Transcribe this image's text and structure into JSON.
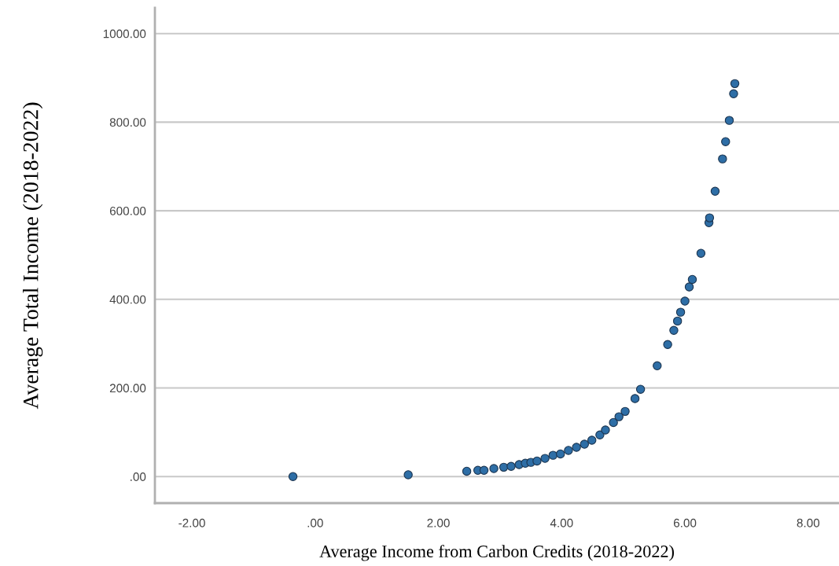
{
  "chart_data": {
    "type": "scatter",
    "xlabel": "Average Income from Carbon Credits (2018-2022)",
    "ylabel": "Average Total Income (2018-2022)",
    "x": [
      -0.36,
      1.51,
      2.46,
      2.64,
      2.74,
      2.9,
      3.06,
      3.18,
      3.31,
      3.41,
      3.5,
      3.6,
      3.73,
      3.86,
      3.98,
      4.11,
      4.24,
      4.37,
      4.49,
      4.62,
      4.71,
      4.84,
      4.93,
      5.03,
      5.19,
      5.28,
      5.55,
      5.72,
      5.82,
      5.88,
      5.93,
      6.0,
      6.07,
      6.12,
      6.26,
      6.39,
      6.4,
      6.49,
      6.61,
      6.66,
      6.72,
      6.79,
      6.81
    ],
    "series": [
      {
        "color": "#2e6ea6",
        "values": [
          0,
          4,
          12,
          14,
          14,
          18,
          21,
          23,
          27,
          30,
          32,
          35,
          41,
          48,
          51,
          59,
          66,
          73,
          82,
          94,
          105,
          122,
          135,
          147,
          176,
          197,
          250,
          298,
          330,
          351,
          371,
          396,
          428,
          445,
          504,
          573,
          584,
          644,
          717,
          756,
          804,
          864,
          887
        ]
      }
    ],
    "xlim": [
      -2.6,
      8.5
    ],
    "ylim": [
      -60,
      1058
    ],
    "xticks": [
      {
        "value": -2,
        "label": "-2.00"
      },
      {
        "value": 0,
        "label": ".00"
      },
      {
        "value": 2,
        "label": "2.00"
      },
      {
        "value": 4,
        "label": "4.00"
      },
      {
        "value": 6,
        "label": "6.00"
      },
      {
        "value": 8,
        "label": "8.00"
      }
    ],
    "yticks": [
      {
        "value": 0,
        "label": ".00"
      },
      {
        "value": 200,
        "label": "200.00"
      },
      {
        "value": 400,
        "label": "400.00"
      },
      {
        "value": 600,
        "label": "600.00"
      },
      {
        "value": 800,
        "label": "800.00"
      },
      {
        "value": 1000,
        "label": "1000.00"
      }
    ],
    "grid": "y",
    "marker": "circle"
  }
}
